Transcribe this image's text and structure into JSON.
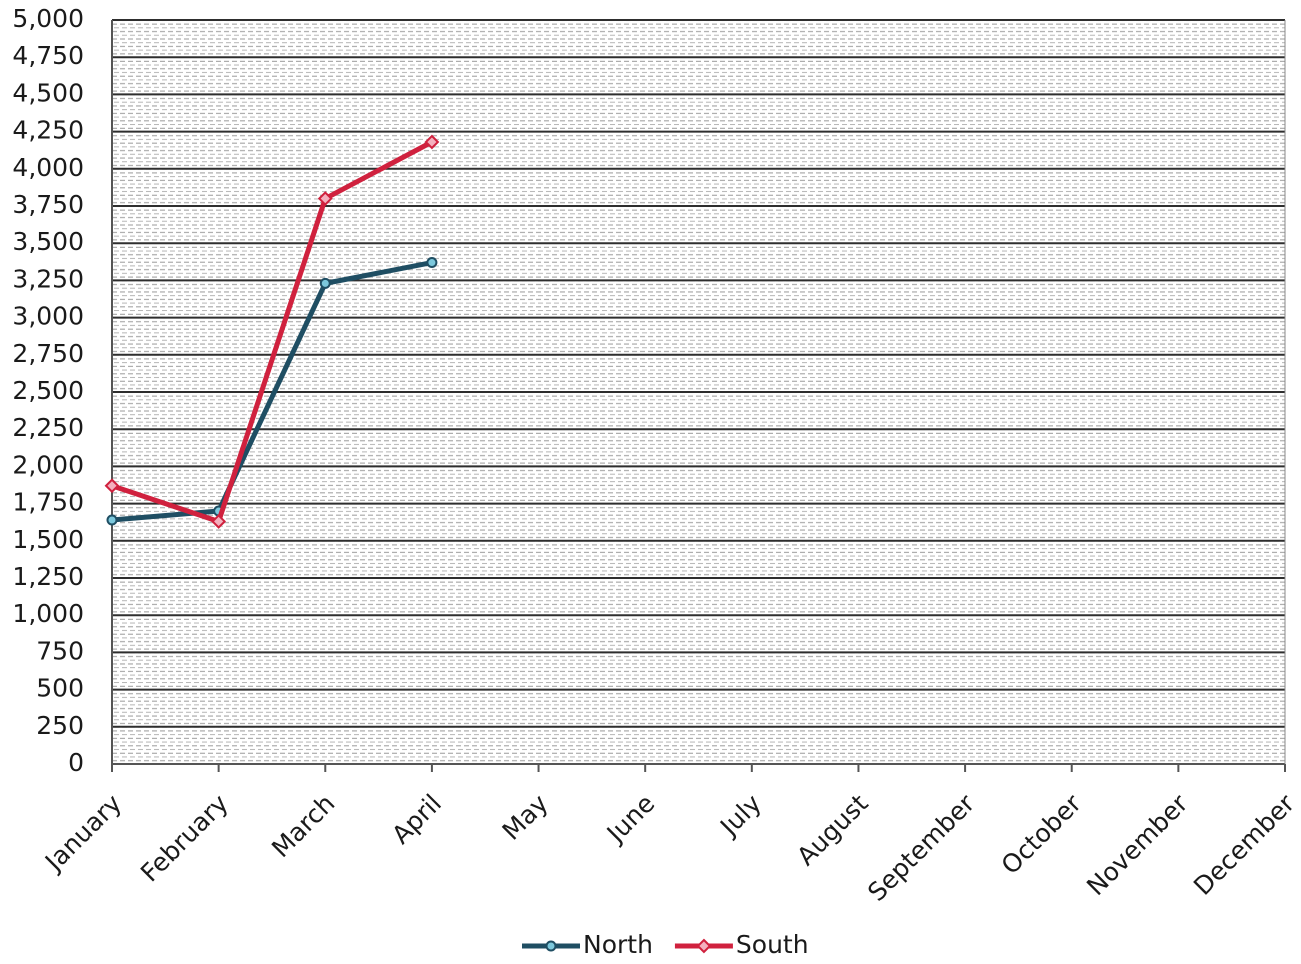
{
  "chart_data": {
    "type": "line",
    "categories": [
      "January",
      "February",
      "March",
      "April",
      "May",
      "June",
      "July",
      "August",
      "September",
      "October",
      "November",
      "December"
    ],
    "series": [
      {
        "name": "North",
        "color": "#1f4e63",
        "marker": "circle",
        "marker_fill": "#7cc8dc",
        "values": [
          1640,
          1700,
          3230,
          3370,
          null,
          null,
          null,
          null,
          null,
          null,
          null,
          null
        ]
      },
      {
        "name": "South",
        "color": "#d0213e",
        "marker": "diamond",
        "marker_fill": "#f4b0be",
        "values": [
          1870,
          1630,
          3800,
          4180,
          null,
          null,
          null,
          null,
          null,
          null,
          null,
          null
        ]
      }
    ],
    "ylim": [
      0,
      5000
    ],
    "yticks": [
      0,
      250,
      500,
      750,
      {
        "value": 1000,
        "label": "1,000"
      },
      {
        "value": 1250,
        "label": "1,250"
      },
      {
        "value": 1500,
        "label": "1,500"
      },
      {
        "value": 1750,
        "label": "1,750"
      },
      {
        "value": 2000,
        "label": "2,000"
      },
      {
        "value": 2250,
        "label": "2,250"
      },
      {
        "value": 2500,
        "label": "2,500"
      },
      {
        "value": 2750,
        "label": "2,750"
      },
      {
        "value": 3000,
        "label": "3,000"
      },
      {
        "value": 3250,
        "label": "3,250"
      },
      {
        "value": 3500,
        "label": "3,500"
      },
      {
        "value": 3750,
        "label": "3,750"
      },
      {
        "value": 4000,
        "label": "4,000"
      },
      {
        "value": 4250,
        "label": "4,250"
      },
      {
        "value": 4500,
        "label": "4,500"
      },
      {
        "value": 4750,
        "label": "4,750"
      },
      {
        "value": 5000,
        "label": "5,000"
      }
    ],
    "grid": true,
    "legend": "bottom"
  }
}
